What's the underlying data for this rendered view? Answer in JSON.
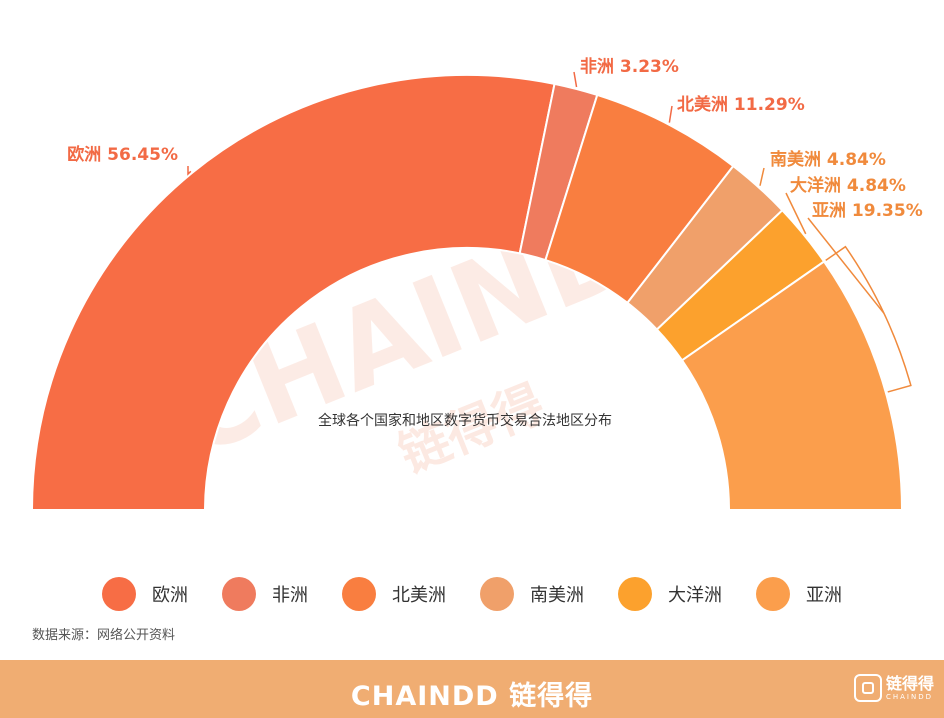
{
  "chart_data": {
    "type": "pie",
    "title": "全球各个国家和地区数字货币交易合法地区分布",
    "categories": [
      "欧洲",
      "非洲",
      "北美洲",
      "南美洲",
      "大洋洲",
      "亚洲"
    ],
    "values": [
      56.45,
      3.23,
      11.29,
      4.84,
      4.84,
      19.35
    ],
    "labels": [
      "欧洲 56.45%",
      "非洲 3.23%",
      "北美洲 11.29%",
      "南美洲 4.84%",
      "大洋洲 4.84%",
      "亚洲 19.35%"
    ],
    "colors": [
      "#f76d45",
      "#ef7b5e",
      "#f97e40",
      "#f0a06a",
      "#fca12d",
      "#fb9e4c"
    ],
    "label_colors": [
      "#f26a45",
      "#f26a45",
      "#f26a45",
      "#f08a3c",
      "#f08a3c",
      "#f08a3c"
    ],
    "legend_position": "bottom"
  },
  "legend": [
    {
      "label": "欧洲",
      "color": "#f76d45"
    },
    {
      "label": "非洲",
      "color": "#ef7b5e"
    },
    {
      "label": "北美洲",
      "color": "#f97e40"
    },
    {
      "label": "南美洲",
      "color": "#f0a06a"
    },
    {
      "label": "大洋洲",
      "color": "#fca12d"
    },
    {
      "label": "亚洲",
      "color": "#fb9e4c"
    }
  ],
  "source": "数据来源：网络公开资料",
  "watermark": {
    "en": "CHAINDD",
    "cn": "链得得"
  },
  "footer": {
    "brand": "CHAINDD 链得得",
    "logo_cn": "链得得",
    "logo_en": "CHAINDD"
  }
}
